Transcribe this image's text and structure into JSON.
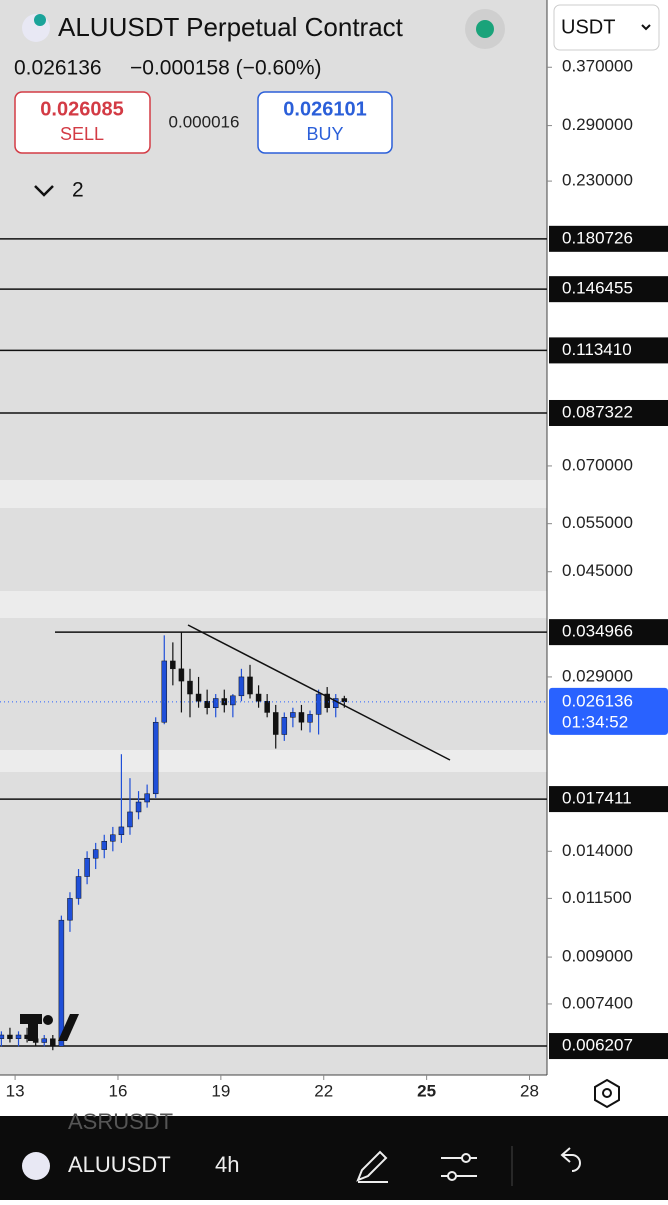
{
  "header": {
    "symbol_title": "ALUUSDT Perpetual Contract",
    "last_price": "0.026136",
    "change": "−0.000158 (−0.60%)",
    "sell_price": "0.026085",
    "sell_label": "SELL",
    "spread": "0.000016",
    "buy_price": "0.026101",
    "buy_label": "BUY",
    "indicator_count": "2",
    "currency": "USDT"
  },
  "chart_data": {
    "type": "candlestick",
    "log_scale": true,
    "x": [
      12.6,
      12.85,
      13.1,
      13.35,
      13.6,
      13.85,
      14.1,
      14.35,
      14.6,
      14.85,
      15.1,
      15.35,
      15.6,
      15.85,
      16.1,
      16.35,
      16.6,
      16.85,
      17.1,
      17.35,
      17.6,
      17.85,
      18.1,
      18.35,
      18.6,
      18.85,
      19.1,
      19.35,
      19.6,
      19.85,
      20.1,
      20.35,
      20.6,
      20.85,
      21.1,
      21.35,
      21.6,
      21.85,
      22.1,
      22.35,
      22.6
    ],
    "open": [
      0.0064,
      0.0065,
      0.0064,
      0.0065,
      0.0064,
      0.0063,
      0.0064,
      0.0062,
      0.0105,
      0.0115,
      0.0126,
      0.0136,
      0.0141,
      0.0146,
      0.015,
      0.0155,
      0.0165,
      0.0172,
      0.0178,
      0.024,
      0.031,
      0.03,
      0.0285,
      0.027,
      0.0262,
      0.0255,
      0.0265,
      0.0258,
      0.0268,
      0.029,
      0.027,
      0.0262,
      0.025,
      0.0228,
      0.0245,
      0.025,
      0.024,
      0.0248,
      0.027,
      0.0255,
      0.0265
    ],
    "high": [
      0.0066,
      0.0067,
      0.0066,
      0.0067,
      0.0066,
      0.0065,
      0.0065,
      0.0107,
      0.0118,
      0.013,
      0.014,
      0.0145,
      0.015,
      0.0155,
      0.021,
      0.019,
      0.018,
      0.0185,
      0.0245,
      0.0345,
      0.0335,
      0.035,
      0.03,
      0.029,
      0.0275,
      0.027,
      0.0275,
      0.027,
      0.03,
      0.0305,
      0.028,
      0.027,
      0.0258,
      0.025,
      0.0255,
      0.0258,
      0.0252,
      0.0275,
      0.0278,
      0.027,
      0.0268
    ],
    "low": [
      0.0062,
      0.0063,
      0.0062,
      0.0063,
      0.0062,
      0.0062,
      0.0061,
      0.0062,
      0.01,
      0.0112,
      0.0122,
      0.013,
      0.0136,
      0.014,
      0.0145,
      0.015,
      0.016,
      0.0168,
      0.0175,
      0.0238,
      0.028,
      0.025,
      0.0245,
      0.0255,
      0.0248,
      0.0245,
      0.025,
      0.0245,
      0.0262,
      0.0265,
      0.0255,
      0.0245,
      0.0215,
      0.0222,
      0.0235,
      0.0232,
      0.023,
      0.0228,
      0.025,
      0.0245,
      0.0255
    ],
    "close": [
      0.0065,
      0.0064,
      0.0065,
      0.0064,
      0.0063,
      0.0064,
      0.0062,
      0.0105,
      0.0115,
      0.0126,
      0.0136,
      0.0141,
      0.0146,
      0.015,
      0.0155,
      0.0165,
      0.0172,
      0.0178,
      0.024,
      0.031,
      0.03,
      0.0285,
      0.027,
      0.0262,
      0.0255,
      0.0265,
      0.0258,
      0.0268,
      0.029,
      0.027,
      0.0262,
      0.025,
      0.0228,
      0.0245,
      0.025,
      0.024,
      0.0248,
      0.027,
      0.0255,
      0.0265,
      0.026136
    ],
    "up_color": "#1f4fd8",
    "down_color": "#111111",
    "ylim": [
      0.0055,
      0.49
    ],
    "xlim": [
      12.56,
      28.51
    ],
    "yticks": [
      {
        "value": 0.37,
        "label": "0.370000"
      },
      {
        "value": 0.29,
        "label": "0.290000"
      },
      {
        "value": 0.23,
        "label": "0.230000"
      },
      {
        "value": 0.07,
        "label": "0.070000"
      },
      {
        "value": 0.055,
        "label": "0.055000"
      },
      {
        "value": 0.045,
        "label": "0.045000"
      },
      {
        "value": 0.029,
        "label": "0.029000"
      },
      {
        "value": 0.014,
        "label": "0.014000"
      },
      {
        "value": 0.0115,
        "label": "0.011500"
      },
      {
        "value": 0.009,
        "label": "0.009000"
      },
      {
        "value": 0.0074,
        "label": "0.007400"
      }
    ],
    "xticks": [
      13,
      16,
      19,
      22,
      25,
      28
    ],
    "levels": [
      0.180726,
      0.146455,
      {
        "value": 0.11341,
        "label": "0.113410"
      },
      0.087322,
      0.034966,
      0.017411,
      0.006207
    ],
    "last_price_value": 0.026136,
    "countdown": "01:34:52"
  },
  "footer": {
    "symbol": "ALUUSDT",
    "interval": "4h",
    "previous_symbol": "ASRUSDT"
  }
}
